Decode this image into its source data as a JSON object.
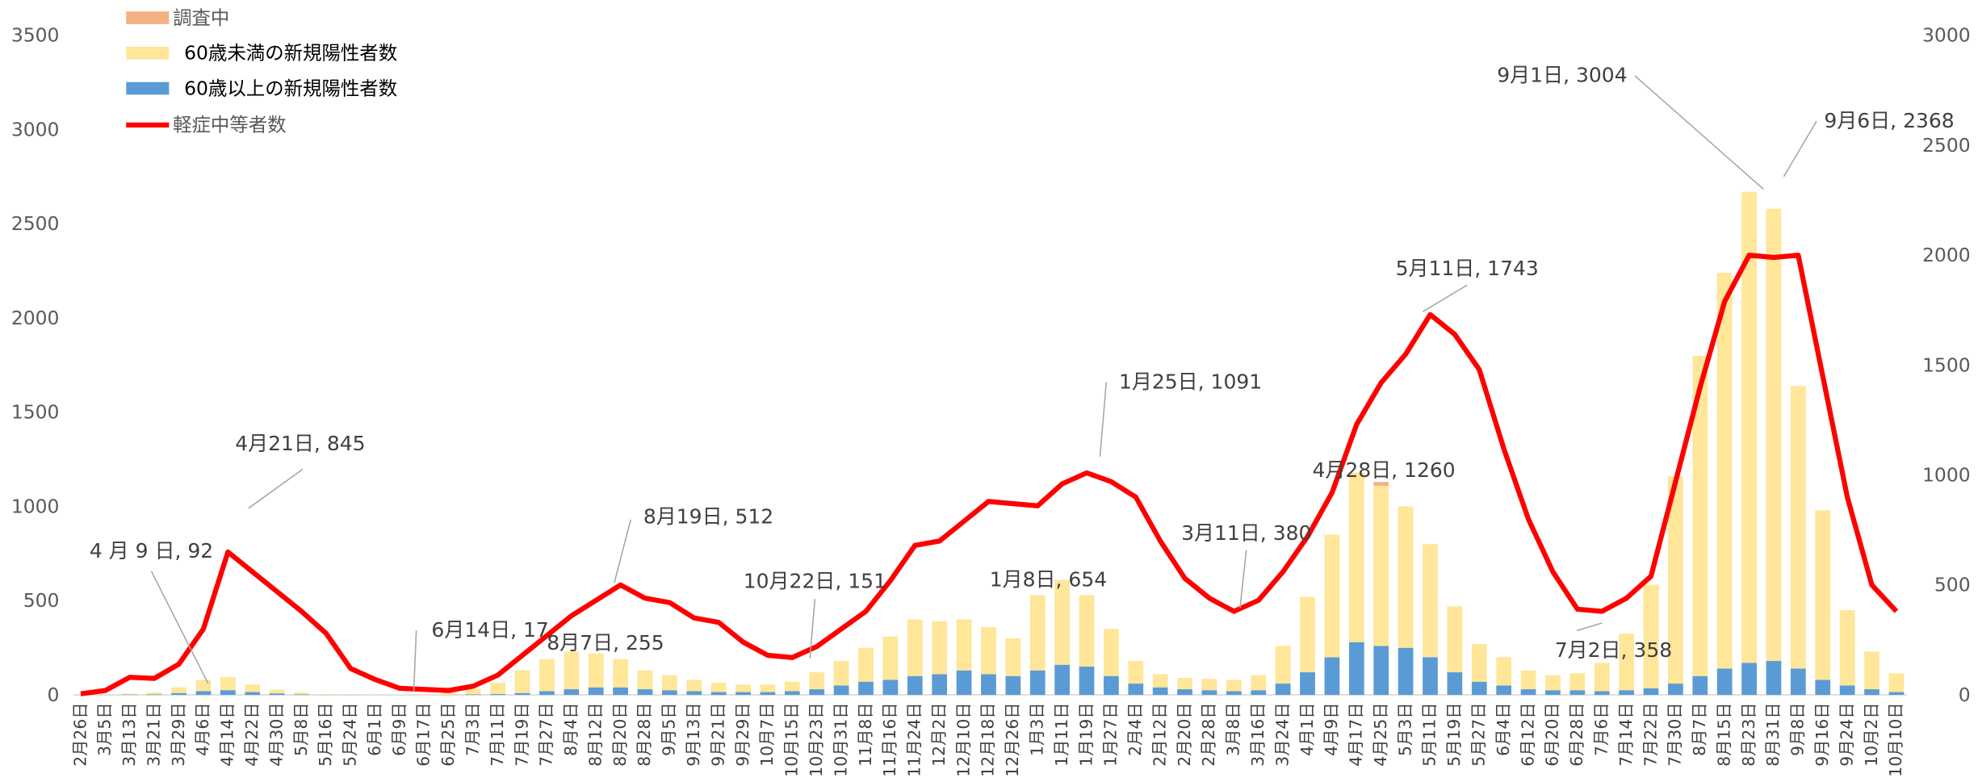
{
  "chart_data": {
    "type": "bar-line",
    "categories": [
      "2月26日",
      "3月5日",
      "3月13日",
      "3月21日",
      "3月29日",
      "4月6日",
      "4月14日",
      "4月22日",
      "4月30日",
      "5月8日",
      "5月16日",
      "5月24日",
      "6月1日",
      "6月9日",
      "6月17日",
      "6月25日",
      "7月3日",
      "7月11日",
      "7月19日",
      "7月27日",
      "8月4日",
      "8月12日",
      "8月20日",
      "8月28日",
      "9月5日",
      "9月13日",
      "9月21日",
      "9月29日",
      "10月7日",
      "10月15日",
      "10月23日",
      "10月31日",
      "11月8日",
      "11月16日",
      "11月24日",
      "12月2日",
      "12月10日",
      "12月18日",
      "12月26日",
      "1月3日",
      "1月11日",
      "1月19日",
      "1月27日",
      "2月4日",
      "2月12日",
      "2月20日",
      "2月28日",
      "3月8日",
      "3月16日",
      "3月24日",
      "4月1日",
      "4月9日",
      "4月17日",
      "4月25日",
      "5月3日",
      "5月11日",
      "5月19日",
      "5月27日",
      "6月4日",
      "6月12日",
      "6月20日",
      "6月28日",
      "7月6日",
      "7月14日",
      "7月22日",
      "7月30日",
      "8月7日",
      "8月15日",
      "8月23日",
      "8月31日",
      "9月8日",
      "9月16日",
      "9月24日",
      "10月2日",
      "10月10日"
    ],
    "series": [
      {
        "name": "60歳以上の新規陽性者数",
        "color": "#5b9bd5",
        "values": [
          0,
          1,
          2,
          3,
          10,
          20,
          25,
          15,
          8,
          3,
          1,
          1,
          0,
          0,
          0,
          1,
          3,
          5,
          10,
          20,
          30,
          40,
          40,
          30,
          25,
          20,
          15,
          15,
          15,
          20,
          30,
          50,
          70,
          80,
          100,
          110,
          130,
          110,
          100,
          130,
          160,
          150,
          100,
          60,
          40,
          30,
          25,
          20,
          25,
          60,
          120,
          200,
          280,
          260,
          250,
          200,
          120,
          70,
          50,
          30,
          25,
          25,
          20,
          25,
          35,
          60,
          100,
          140,
          170,
          180,
          140,
          80,
          50,
          30,
          15
        ]
      },
      {
        "name": "60歳未満の新規陽性者数",
        "color": "#ffe699",
        "values": [
          0,
          2,
          5,
          10,
          30,
          60,
          70,
          40,
          20,
          10,
          3,
          2,
          1,
          2,
          3,
          10,
          30,
          60,
          120,
          170,
          200,
          180,
          150,
          100,
          80,
          60,
          50,
          40,
          40,
          50,
          90,
          130,
          180,
          230,
          300,
          280,
          270,
          250,
          200,
          400,
          450,
          380,
          250,
          120,
          70,
          60,
          60,
          60,
          80,
          200,
          400,
          650,
          900,
          850,
          750,
          600,
          350,
          200,
          150,
          100,
          80,
          90,
          150,
          300,
          550,
          1100,
          1700,
          2100,
          2500,
          2400,
          1500,
          900,
          400,
          200,
          100
        ]
      },
      {
        "name": "調査中",
        "color": "#f4b183",
        "values": [
          0,
          0,
          0,
          0,
          0,
          0,
          0,
          0,
          0,
          0,
          0,
          0,
          0,
          0,
          0,
          0,
          0,
          0,
          0,
          0,
          0,
          0,
          0,
          0,
          0,
          0,
          0,
          0,
          0,
          0,
          0,
          0,
          0,
          0,
          0,
          0,
          0,
          0,
          0,
          0,
          0,
          0,
          0,
          0,
          0,
          0,
          0,
          0,
          0,
          0,
          0,
          0,
          0,
          20,
          0,
          0,
          0,
          0,
          0,
          0,
          0,
          0,
          0,
          0,
          0,
          0,
          0,
          0,
          0,
          0,
          0,
          0,
          0,
          0,
          0
        ]
      },
      {
        "name": "軽症中等者数",
        "color": "#ff0000",
        "axis": "y2",
        "values": [
          5,
          20,
          80,
          75,
          140,
          300,
          650,
          560,
          470,
          380,
          280,
          120,
          70,
          30,
          25,
          20,
          40,
          90,
          180,
          270,
          360,
          430,
          500,
          440,
          420,
          350,
          330,
          240,
          180,
          170,
          220,
          300,
          380,
          520,
          680,
          700,
          790,
          880,
          870,
          860,
          960,
          1010,
          970,
          900,
          700,
          530,
          440,
          380,
          430,
          560,
          720,
          920,
          1230,
          1420,
          1550,
          1730,
          1640,
          1480,
          1120,
          800,
          560,
          390,
          380,
          440,
          540,
          970,
          1400,
          1790,
          2000,
          1990,
          2000,
          1450,
          900,
          500,
          380
        ]
      }
    ],
    "ylim": [
      0,
      3500
    ],
    "yticks": [
      0,
      500,
      1000,
      1500,
      2000,
      2500,
      3000,
      3500
    ],
    "y2lim": [
      0,
      3000
    ],
    "y2ticks": [
      0,
      500,
      1000,
      1500,
      2000,
      2500,
      3000
    ],
    "annotations": [
      {
        "text": "4月21日, 845"
      },
      {
        "text": "4 月 9 日, 92"
      },
      {
        "text": "6月14日, 17"
      },
      {
        "text": "8月19日, 512"
      },
      {
        "text": "8月7日, 255"
      },
      {
        "text": "10月22日, 151"
      },
      {
        "text": "1月8日, 654"
      },
      {
        "text": "1月25日, 1091"
      },
      {
        "text": "3月11日, 380"
      },
      {
        "text": "4月28日, 1260"
      },
      {
        "text": "5月11日, 1743"
      },
      {
        "text": "7月2日, 358"
      },
      {
        "text": "9月1日, 3004"
      },
      {
        "text": "9月6日, 2368"
      }
    ]
  }
}
